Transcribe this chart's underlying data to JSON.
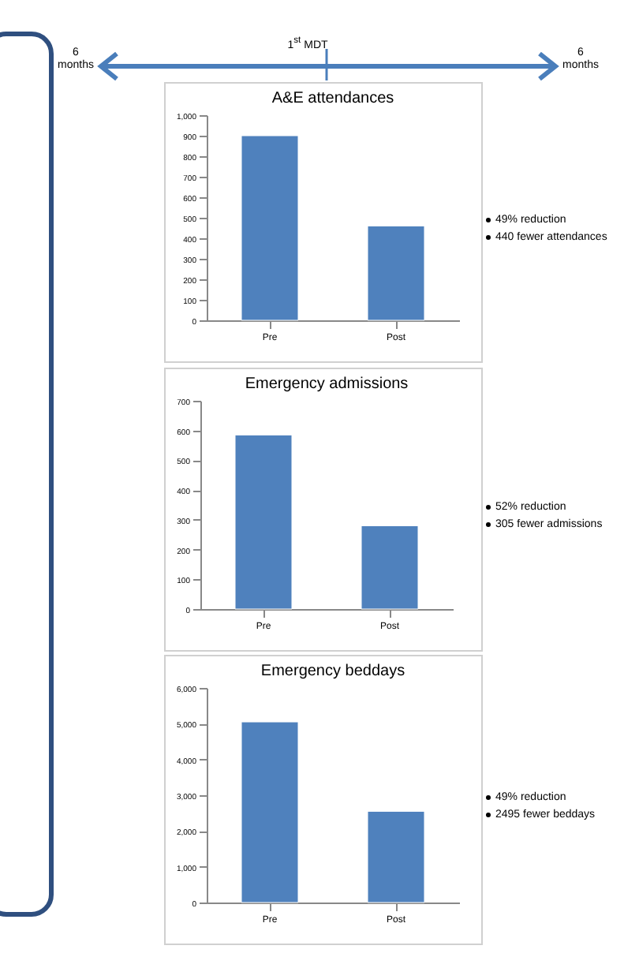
{
  "chart_data": [
    {
      "type": "bar",
      "title": "A&E attendances",
      "categories": [
        "Pre",
        "Post"
      ],
      "values": [
        900,
        460
      ],
      "color": "#4f81bd",
      "ylim": [
        0,
        1000
      ],
      "yticks": [
        0,
        100,
        200,
        300,
        400,
        500,
        600,
        700,
        800,
        900,
        {
          "value": 1000,
          "label": "1,000"
        }
      ],
      "grid": false,
      "annotations": [
        "1$^{st}$ MDT",
        "6 months",
        "6 months",
        "49% reduction",
        "440 fewer attendances"
      ]
    },
    {
      "type": "bar",
      "title": "Emergency admissions",
      "categories": [
        "Pre",
        "Post"
      ],
      "values": [
        585,
        280
      ],
      "color": "#4f81bd",
      "ylim": [
        0,
        700
      ],
      "yticks": [
        0,
        100,
        200,
        300,
        400,
        500,
        600,
        700
      ],
      "grid": false,
      "annotations": [
        "52% reduction",
        "305 fewer admissions"
      ]
    },
    {
      "type": "bar",
      "title": "Emergency beddays",
      "categories": [
        "Pre",
        "Post"
      ],
      "values": [
        5050,
        2550
      ],
      "color": "#4f81bd",
      "ylim": [
        0,
        6000
      ],
      "yticks": [
        0,
        {
          "value": 1000,
          "label": "1,000"
        },
        {
          "value": 2000,
          "label": "2,000"
        },
        {
          "value": 3000,
          "label": "3,000"
        },
        {
          "value": 4000,
          "label": "4,000"
        },
        {
          "value": 5000,
          "label": "5,000"
        },
        {
          "value": 6000,
          "label": "6,000"
        }
      ],
      "grid": false,
      "annotations": [
        "49% reduction",
        "2495 fewer beddays"
      ]
    }
  ]
}
